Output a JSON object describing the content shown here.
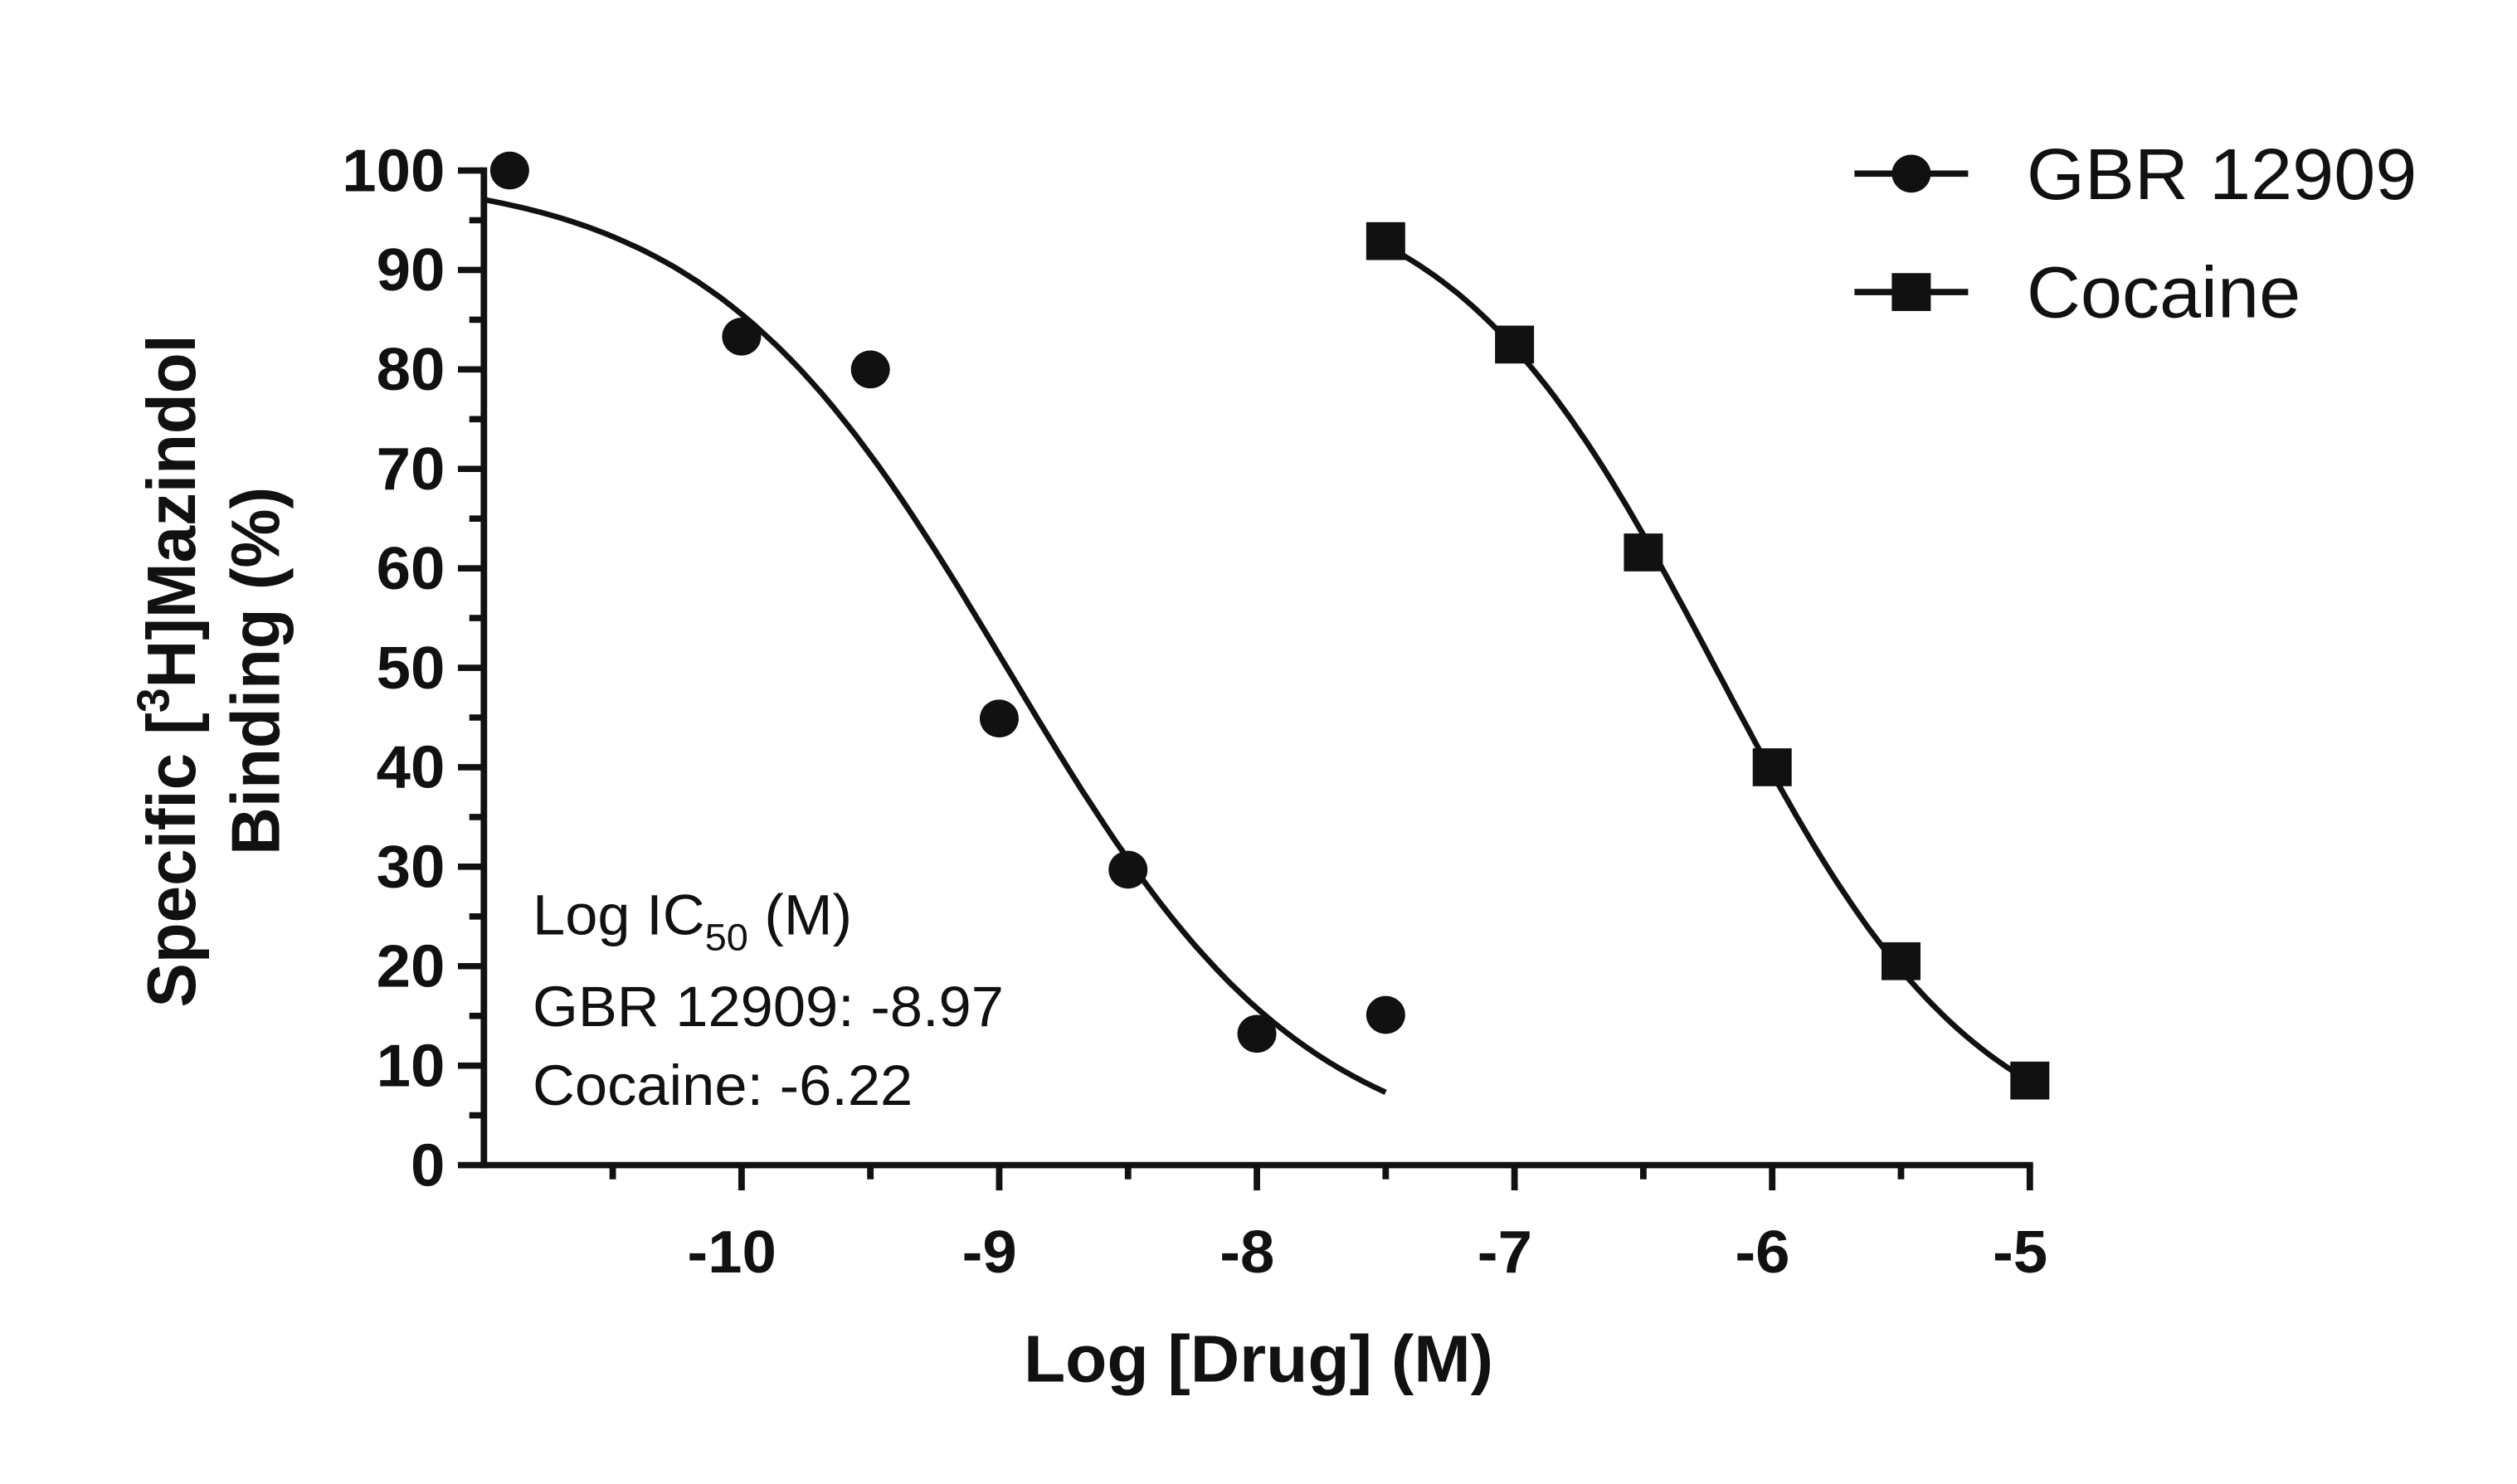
{
  "chart_data": {
    "type": "scatter",
    "x_label": "Log [Drug] (M)",
    "y_label_parts": [
      "Specific [",
      "3",
      "H]Mazindol"
    ],
    "y_label_line2": "Binding (%)",
    "xlim": [
      -11,
      -5
    ],
    "ylim": [
      0,
      100
    ],
    "xticks": [
      -10,
      -9,
      -8,
      -7,
      -6,
      -5
    ],
    "x_minor_ticks": [
      -10.5,
      -9.5,
      -8.5,
      -7.5,
      -6.5,
      -5.5
    ],
    "yticks": [
      0,
      10,
      20,
      30,
      40,
      50,
      60,
      70,
      80,
      90,
      100
    ],
    "y_minor_ticks": [
      5,
      15,
      25,
      35,
      45,
      55,
      65,
      75,
      85,
      95
    ],
    "legend": "top-right",
    "series": [
      {
        "name": "GBR 12909",
        "color": "#111111",
        "marker": "circle",
        "x": [
          -10.9,
          -10,
          -9.5,
          -9,
          -8.5,
          -8,
          -7.5
        ],
        "values": [
          100,
          83.3,
          80,
          44.9,
          29.7,
          13.2,
          15.1
        ],
        "fit": {
          "top": 100,
          "bottom": 0,
          "log_ic50": -8.97,
          "hill_slope": 0.75,
          "x_range": [
            -11,
            -7.5
          ]
        }
      },
      {
        "name": "Cocaine",
        "color": "#111111",
        "marker": "square",
        "x": [
          -7.5,
          -7,
          -6.5,
          -6,
          -5.5,
          -5
        ],
        "values": [
          92.9,
          82.5,
          61.6,
          40,
          20.5,
          8.5
        ],
        "fit": {
          "top": 100,
          "bottom": 0,
          "log_ic50": -6.22,
          "hill_slope": 0.85,
          "x_range": [
            -7.5,
            -5
          ]
        }
      }
    ],
    "annotation": {
      "title_parts": [
        "Log IC",
        "50",
        " (M)"
      ],
      "lines": [
        "GBR 12909: -8.97",
        "Cocaine: -6.22"
      ]
    }
  }
}
